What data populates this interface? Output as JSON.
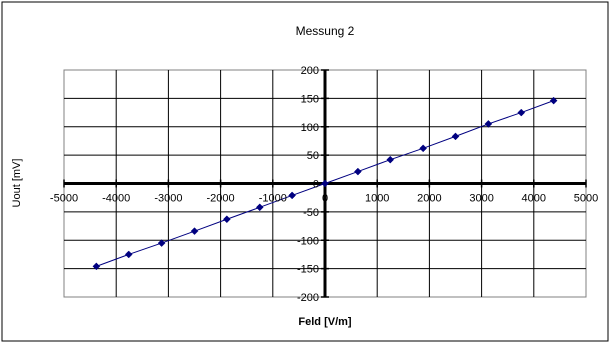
{
  "chart_data": {
    "type": "scatter",
    "title": "Messung 2",
    "xlabel": "Feld [V/m]",
    "ylabel": "Uout [mV]",
    "xlim": [
      -5000,
      5000
    ],
    "ylim": [
      -200,
      200
    ],
    "xticks": [
      -5000,
      -4000,
      -3000,
      -2000,
      -1000,
      0,
      1000,
      2000,
      3000,
      4000,
      5000
    ],
    "yticks": [
      -200,
      -150,
      -100,
      -50,
      0,
      50,
      100,
      150,
      200
    ],
    "grid": true,
    "line": true,
    "series": [
      {
        "color": "#000080",
        "x": [
          -4380,
          -3760,
          -3130,
          -2500,
          -1880,
          -1250,
          -630,
          0,
          630,
          1250,
          1880,
          2500,
          3130,
          3760,
          4380
        ],
        "y": [
          -146,
          -125,
          -105,
          -84,
          -63,
          -42,
          -21,
          0,
          21,
          42,
          62,
          83,
          105,
          125,
          146
        ]
      }
    ]
  }
}
